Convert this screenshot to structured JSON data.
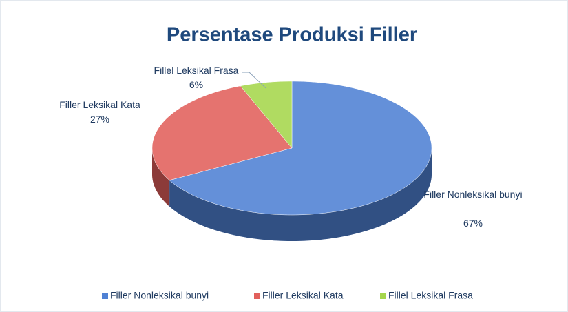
{
  "chart_data": {
    "type": "pie",
    "title": "Persentase Produksi Filler",
    "categories": [
      "Filler Nonleksikal bunyi",
      "Filler Leksikal Kata",
      "Fillel Leksikal Frasa"
    ],
    "values": [
      67,
      27,
      6
    ],
    "value_labels": [
      "67%",
      "27%",
      "6%"
    ],
    "colors": [
      "#4f81d4",
      "#e2605c",
      "#a5d64c"
    ],
    "legend": "bottom"
  }
}
